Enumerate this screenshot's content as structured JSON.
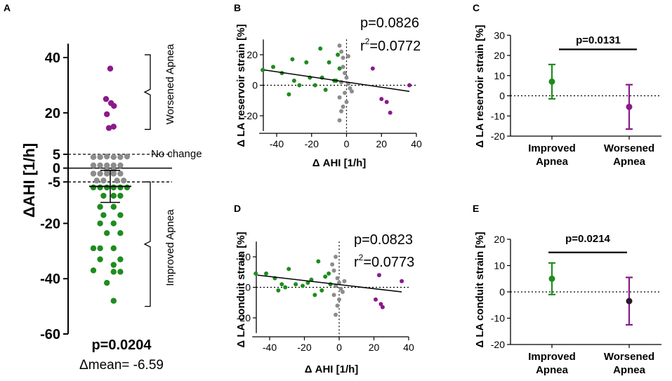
{
  "colors": {
    "improved": "#1e8c1e",
    "worsened": "#8b1a8b",
    "nochange": "#8c8c8c",
    "axis": "#000000",
    "black_point": "#2b1a2b"
  },
  "chart_data": [
    {
      "panel": "A",
      "type": "scatter",
      "ylabel": "ΔAHI [1/h]",
      "ylim": [
        -60,
        45
      ],
      "yticks": [
        40,
        20,
        5,
        0,
        -5,
        -20,
        -40,
        -60
      ],
      "tick_labels": [
        "40",
        "20",
        "5",
        "0",
        "-5",
        "-20",
        "-40",
        "-60"
      ],
      "reference_lines": [
        5,
        -5
      ],
      "mean": -6.59,
      "sem_bar": [
        -12.4,
        -0.8
      ],
      "groups": {
        "worsened": [
          {
            "x": 0,
            "y": 36
          },
          {
            "x": -0.25,
            "y": 25
          },
          {
            "x": 0.05,
            "y": 23.5
          },
          {
            "x": 0.22,
            "y": 22.5
          },
          {
            "x": -0.2,
            "y": 19.5
          },
          {
            "x": 0.2,
            "y": 15
          },
          {
            "x": -0.08,
            "y": 14.5
          }
        ],
        "nochange": [
          {
            "x": -1,
            "y": 4
          },
          {
            "x": -0.6,
            "y": 4
          },
          {
            "x": -0.2,
            "y": 4.2
          },
          {
            "x": 0.2,
            "y": 4
          },
          {
            "x": 0.6,
            "y": 4
          },
          {
            "x": 1,
            "y": 4.2
          },
          {
            "x": -1,
            "y": 1
          },
          {
            "x": -0.6,
            "y": 1
          },
          {
            "x": -0.2,
            "y": 1
          },
          {
            "x": 0.2,
            "y": 1
          },
          {
            "x": 0.6,
            "y": 1
          },
          {
            "x": -0.2,
            "y": -0.8
          },
          {
            "x": 0.2,
            "y": -0.8
          },
          {
            "x": -1,
            "y": -2
          },
          {
            "x": -0.6,
            "y": -2
          },
          {
            "x": -0.2,
            "y": -2
          },
          {
            "x": 0.2,
            "y": -2
          },
          {
            "x": 0.6,
            "y": -2
          },
          {
            "x": -0.8,
            "y": -4.5
          },
          {
            "x": -0.4,
            "y": -4.5
          },
          {
            "x": 0.4,
            "y": -4.5
          },
          {
            "x": 0.8,
            "y": -4.5
          }
        ],
        "improved": [
          {
            "x": -1,
            "y": -7
          },
          {
            "x": -0.6,
            "y": -7
          },
          {
            "x": -0.2,
            "y": -7
          },
          {
            "x": 0.2,
            "y": -7
          },
          {
            "x": 0.6,
            "y": -7
          },
          {
            "x": 1,
            "y": -7
          },
          {
            "x": -0.4,
            "y": -10
          },
          {
            "x": 0.2,
            "y": -10
          },
          {
            "x": 0.6,
            "y": -10
          },
          {
            "x": -0.6,
            "y": -14
          },
          {
            "x": 0.2,
            "y": -14
          },
          {
            "x": -0.4,
            "y": -17
          },
          {
            "x": 0.6,
            "y": -17
          },
          {
            "x": -0.6,
            "y": -20
          },
          {
            "x": 0.2,
            "y": -20
          },
          {
            "x": -0.2,
            "y": -23.5
          },
          {
            "x": 0.6,
            "y": -23.5
          },
          {
            "x": -1,
            "y": -29
          },
          {
            "x": -0.6,
            "y": -29
          },
          {
            "x": 0.2,
            "y": -29
          },
          {
            "x": -0.6,
            "y": -33
          },
          {
            "x": 0.6,
            "y": -33
          },
          {
            "x": 0.2,
            "y": -35
          },
          {
            "x": -1,
            "y": -37
          },
          {
            "x": 0.2,
            "y": -37.5
          },
          {
            "x": 0.6,
            "y": -37.5
          },
          {
            "x": -0.2,
            "y": -41.5
          },
          {
            "x": 0.2,
            "y": -48
          }
        ]
      },
      "annotations": {
        "worsened": "Worsened Apnea",
        "nochange": "No change",
        "improved": "Improved Apnea"
      },
      "pvalue": "p=0.0204",
      "mean_label": "Δmean= -6.59"
    },
    {
      "panel": "B",
      "type": "scatter",
      "xlabel": "Δ AHI [1/h]",
      "ylabel": "Δ LA reservoir strain [%]",
      "xlim": [
        -50,
        40
      ],
      "ylim": [
        -30,
        30
      ],
      "xticks": [
        -40,
        -20,
        0,
        20,
        40
      ],
      "yticks": [
        -20,
        0,
        20
      ],
      "xtick_labels": [
        "-40",
        "-20",
        "0",
        "20",
        "40"
      ],
      "ytick_labels": [
        "-20",
        "0",
        "20"
      ],
      "regression": {
        "x1": -47,
        "y1": 10,
        "x2": 36,
        "y2": -4
      },
      "pvalue": "p=0.0826",
      "r2_prefix": "r",
      "r2_sup": "2",
      "r2_value": "=0.0772",
      "points": [
        {
          "x": -48,
          "y": 10,
          "g": "improved"
        },
        {
          "x": -42,
          "y": 12,
          "g": "improved"
        },
        {
          "x": -37,
          "y": 8,
          "g": "improved"
        },
        {
          "x": -31,
          "y": 17,
          "g": "improved"
        },
        {
          "x": -33,
          "y": -6,
          "g": "improved"
        },
        {
          "x": -30,
          "y": 3,
          "g": "improved"
        },
        {
          "x": -27,
          "y": 0,
          "g": "improved"
        },
        {
          "x": -23,
          "y": 15,
          "g": "improved"
        },
        {
          "x": -21,
          "y": 5,
          "g": "improved"
        },
        {
          "x": -18,
          "y": 0,
          "g": "improved"
        },
        {
          "x": -15,
          "y": 24,
          "g": "improved"
        },
        {
          "x": -14,
          "y": 5,
          "g": "improved"
        },
        {
          "x": -12,
          "y": -3,
          "g": "improved"
        },
        {
          "x": -10,
          "y": 15,
          "g": "improved"
        },
        {
          "x": -7,
          "y": 3,
          "g": "improved"
        },
        {
          "x": -5,
          "y": 20,
          "g": "improved"
        },
        {
          "x": -4,
          "y": 11,
          "g": "improved"
        },
        {
          "x": -6,
          "y": 3,
          "g": "improved"
        },
        {
          "x": -4,
          "y": 26,
          "g": "nochange"
        },
        {
          "x": -3,
          "y": 22,
          "g": "nochange"
        },
        {
          "x": -2,
          "y": 18,
          "g": "nochange"
        },
        {
          "x": -2,
          "y": 12,
          "g": "nochange"
        },
        {
          "x": -1,
          "y": 8,
          "g": "nochange"
        },
        {
          "x": 0,
          "y": 5,
          "g": "nochange"
        },
        {
          "x": -3,
          "y": 2,
          "g": "nochange"
        },
        {
          "x": 1,
          "y": 1,
          "g": "nochange"
        },
        {
          "x": 2,
          "y": -2,
          "g": "nochange"
        },
        {
          "x": 3,
          "y": -4,
          "g": "nochange"
        },
        {
          "x": -1,
          "y": -5,
          "g": "nochange"
        },
        {
          "x": -4,
          "y": -8,
          "g": "nochange"
        },
        {
          "x": 0,
          "y": -11,
          "g": "nochange"
        },
        {
          "x": -2,
          "y": -14,
          "g": "nochange"
        },
        {
          "x": -3,
          "y": -17,
          "g": "nochange"
        },
        {
          "x": -4,
          "y": -23,
          "g": "nochange"
        },
        {
          "x": 1,
          "y": 19,
          "g": "nochange"
        },
        {
          "x": 15,
          "y": 11,
          "g": "worsened"
        },
        {
          "x": 20,
          "y": -9,
          "g": "worsened"
        },
        {
          "x": 23,
          "y": -11,
          "g": "worsened"
        },
        {
          "x": 25,
          "y": -18,
          "g": "worsened"
        },
        {
          "x": 36,
          "y": 0,
          "g": "worsened"
        }
      ]
    },
    {
      "panel": "C",
      "type": "errorbar",
      "ylabel": "Δ LA reservoir strain [%]",
      "ylim": [
        -20,
        30
      ],
      "yticks": [
        -20,
        -10,
        0,
        10,
        20,
        30
      ],
      "ytick_labels": [
        "-20",
        "-10",
        "0",
        "10",
        "20",
        "30"
      ],
      "categories": [
        [
          "Improved",
          "Apnea"
        ],
        [
          "Worsened",
          "Apnea"
        ]
      ],
      "series": [
        {
          "name": "Improved Apnea",
          "mean": 7,
          "low": -1.5,
          "high": 15.5,
          "color_key": "improved"
        },
        {
          "name": "Worsened Apnea",
          "mean": -5.5,
          "low": -16.5,
          "high": 5.5,
          "color_key": "worsened"
        }
      ],
      "pvalue": "p=0.0131",
      "sig_line_y": 23
    },
    {
      "panel": "D",
      "type": "scatter",
      "xlabel": "Δ AHI [1/h]",
      "ylabel": "Δ LA conduit strain [%]",
      "xlim": [
        -50,
        40
      ],
      "ylim": [
        -30,
        30
      ],
      "xticks": [
        -40,
        -20,
        0,
        20,
        40
      ],
      "yticks": [
        -20,
        0,
        20
      ],
      "xtick_labels": [
        "-40",
        "-20",
        "0",
        "20",
        "40"
      ],
      "ytick_labels": [
        "-20",
        "0",
        "20"
      ],
      "regression": {
        "x1": -47,
        "y1": 8,
        "x2": 36,
        "y2": -3
      },
      "pvalue": "p=0.0823",
      "r2_prefix": "r",
      "r2_sup": "2",
      "r2_value": "=0.0773",
      "points": [
        {
          "x": -48,
          "y": 9,
          "g": "improved"
        },
        {
          "x": -42,
          "y": 9,
          "g": "improved"
        },
        {
          "x": -37,
          "y": 6,
          "g": "improved"
        },
        {
          "x": -35,
          "y": -2,
          "g": "improved"
        },
        {
          "x": -33,
          "y": 2,
          "g": "improved"
        },
        {
          "x": -31,
          "y": 0,
          "g": "improved"
        },
        {
          "x": -29,
          "y": 12,
          "g": "improved"
        },
        {
          "x": -25,
          "y": 2,
          "g": "improved"
        },
        {
          "x": -21,
          "y": 1,
          "g": "improved"
        },
        {
          "x": -18,
          "y": 3,
          "g": "improved"
        },
        {
          "x": -16,
          "y": 5,
          "g": "improved"
        },
        {
          "x": -14,
          "y": -5,
          "g": "improved"
        },
        {
          "x": -12,
          "y": 17,
          "g": "improved"
        },
        {
          "x": -10,
          "y": -2,
          "g": "improved"
        },
        {
          "x": -8,
          "y": 7,
          "g": "improved"
        },
        {
          "x": -6,
          "y": 9,
          "g": "improved"
        },
        {
          "x": -5,
          "y": 2,
          "g": "improved"
        },
        {
          "x": -4,
          "y": 15,
          "g": "nochange"
        },
        {
          "x": -2,
          "y": 20,
          "g": "nochange"
        },
        {
          "x": -3,
          "y": 11,
          "g": "nochange"
        },
        {
          "x": -1,
          "y": 6,
          "g": "nochange"
        },
        {
          "x": 0,
          "y": 3,
          "g": "nochange"
        },
        {
          "x": -2,
          "y": 1,
          "g": "nochange"
        },
        {
          "x": 1,
          "y": -1,
          "g": "nochange"
        },
        {
          "x": 2,
          "y": -3,
          "g": "nochange"
        },
        {
          "x": -3,
          "y": -5,
          "g": "nochange"
        },
        {
          "x": 0,
          "y": -8,
          "g": "nochange"
        },
        {
          "x": -1,
          "y": -12,
          "g": "nochange"
        },
        {
          "x": -2,
          "y": -18,
          "g": "nochange"
        },
        {
          "x": 3,
          "y": 4,
          "g": "nochange"
        },
        {
          "x": 23,
          "y": 8,
          "g": "worsened"
        },
        {
          "x": 21,
          "y": -8,
          "g": "worsened"
        },
        {
          "x": 24,
          "y": -11,
          "g": "worsened"
        },
        {
          "x": 25,
          "y": -13,
          "g": "worsened"
        },
        {
          "x": 36,
          "y": 4,
          "g": "worsened"
        }
      ]
    },
    {
      "panel": "E",
      "type": "errorbar",
      "ylabel": "Δ LA conduit strain [%]",
      "ylim": [
        -20,
        20
      ],
      "yticks": [
        -20,
        -10,
        0,
        10,
        20
      ],
      "ytick_labels": [
        "-20",
        "-10",
        "0",
        "10",
        "20"
      ],
      "categories": [
        [
          "Improved",
          "Apnea"
        ],
        [
          "Worsened",
          "Apnea"
        ]
      ],
      "series": [
        {
          "name": "Improved Apnea",
          "mean": 5,
          "low": -1,
          "high": 11,
          "color_key": "improved"
        },
        {
          "name": "Worsened Apnea",
          "mean": -3.5,
          "low": -12.5,
          "high": 5.5,
          "color_key": "worsened",
          "point_color_key": "black_point"
        }
      ],
      "pvalue": "p=0.0214",
      "sig_line_y": 15
    }
  ]
}
